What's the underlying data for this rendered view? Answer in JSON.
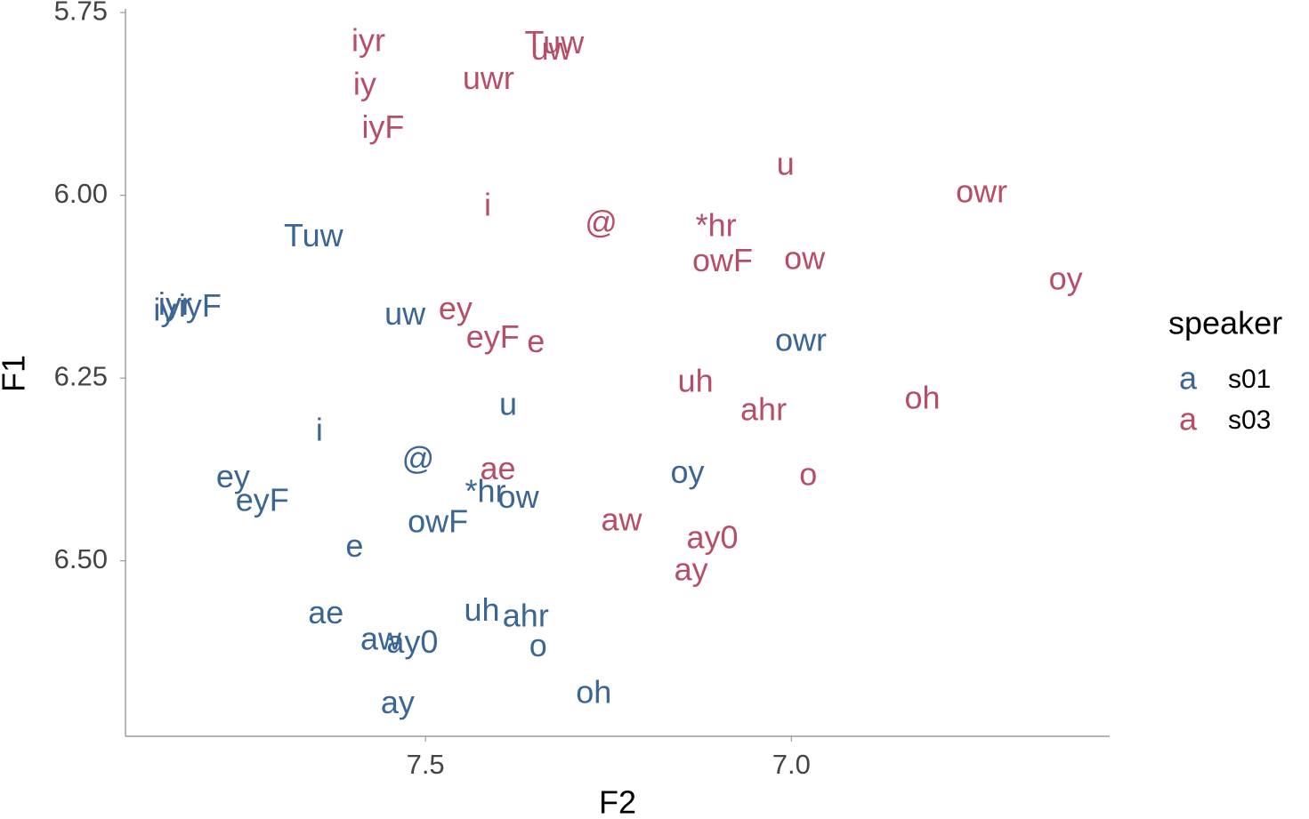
{
  "chart_data": {
    "type": "text-scatter",
    "x_label": "F2",
    "y_label": "F1",
    "xlim": [
      7.91,
      6.565
    ],
    "xticks": [
      7.5,
      {
        "value": 7,
        "label": "7.0"
      }
    ],
    "ylim": [
      6.74,
      5.745
    ],
    "yticks": [
      5.75,
      {
        "value": 6,
        "label": "6.00"
      },
      6.25,
      {
        "value": 6.5,
        "label": "6.50"
      }
    ],
    "legend_title": "speaker",
    "legend_glyph": "a",
    "series": [
      {
        "name": "s01",
        "color": "#3a6595",
        "labels": [
          "Tuw",
          "iy",
          "iyr",
          "iyF",
          "uw",
          "owr",
          "u",
          "i",
          "@",
          "ey",
          "eyF",
          "*hr",
          "ow",
          "oy",
          "owF",
          "e",
          "ae",
          "uh",
          "ahr",
          "aw",
          "ay0",
          "o",
          "oh",
          "ay"
        ],
        "x": [
          7.653,
          7.856,
          7.842,
          7.808,
          7.528,
          6.987,
          7.387,
          7.645,
          7.51,
          7.763,
          7.723,
          7.418,
          7.373,
          7.142,
          7.483,
          7.597,
          7.636,
          7.423,
          7.363,
          7.561,
          7.518,
          7.346,
          7.27,
          7.538
        ],
        "values": [
          6.058,
          6.16,
          6.152,
          6.154,
          6.165,
          6.201,
          6.289,
          6.324,
          6.363,
          6.388,
          6.42,
          6.408,
          6.416,
          6.382,
          6.449,
          6.483,
          6.574,
          6.57,
          6.578,
          6.61,
          6.614,
          6.619,
          6.683,
          6.697
        ]
      },
      {
        "name": "s03",
        "color": "#b84d66",
        "labels": [
          "iyr",
          "Tuw",
          "uw",
          "uwr",
          "iy",
          "iyF",
          "u",
          "owr",
          "i",
          "@",
          "*hr",
          "owF",
          "ow",
          "oy",
          "ey",
          "eyF",
          "e",
          "uh",
          "ahr",
          "oh",
          "ae",
          "o",
          "aw",
          "ay0",
          "ay"
        ],
        "x": [
          7.578,
          7.324,
          7.328,
          7.414,
          7.583,
          7.558,
          7.008,
          6.74,
          7.415,
          7.26,
          7.103,
          7.094,
          6.982,
          6.625,
          7.459,
          7.408,
          7.349,
          7.131,
          7.038,
          6.821,
          7.401,
          6.977,
          7.232,
          7.108,
          7.137
        ],
        "values": [
          5.791,
          5.794,
          5.803,
          5.843,
          5.851,
          5.91,
          5.96,
          5.998,
          6.016,
          6.04,
          6.044,
          6.092,
          6.089,
          6.117,
          6.158,
          6.197,
          6.203,
          6.257,
          6.296,
          6.28,
          6.377,
          6.385,
          6.447,
          6.471,
          6.515
        ]
      }
    ]
  }
}
